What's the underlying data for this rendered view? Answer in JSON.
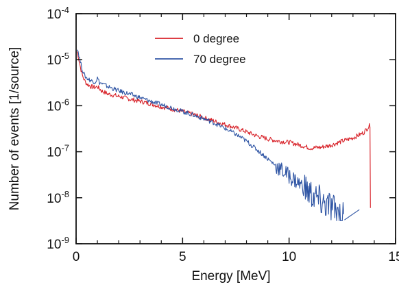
{
  "colors": {
    "series_0": "#d8232a",
    "series_70": "#2f55a4",
    "axis": "#111111",
    "background": "#ffffff"
  },
  "chart_data": {
    "type": "line",
    "title": "",
    "xlabel": "Energy [MeV]",
    "ylabel": "Number of events [1/source]",
    "xlim": [
      0,
      15
    ],
    "ylim": [
      1e-09,
      0.0001
    ],
    "yscale": "log",
    "grid": false,
    "legend_position": "top-center",
    "xticks": [
      0,
      5,
      10,
      15
    ],
    "xtick_labels": [
      "0",
      "5",
      "10",
      "15"
    ],
    "yticks": [
      1e-09,
      1e-08,
      1e-07,
      1e-06,
      1e-05,
      0.0001
    ],
    "ytick_labels": [
      {
        "base": "10",
        "exp": "-9"
      },
      {
        "base": "10",
        "exp": "-8"
      },
      {
        "base": "10",
        "exp": "-7"
      },
      {
        "base": "10",
        "exp": "-6"
      },
      {
        "base": "10",
        "exp": "-5"
      },
      {
        "base": "10",
        "exp": "-4"
      }
    ],
    "series": [
      {
        "name": "0 degree",
        "color": "#d8232a",
        "points": [
          [
            0.05,
            1.5e-05
          ],
          [
            0.1,
            1.2e-05
          ],
          [
            0.2,
            7e-06
          ],
          [
            0.3,
            4.5e-06
          ],
          [
            0.4,
            3.5e-06
          ],
          [
            0.5,
            3e-06
          ],
          [
            0.7,
            2.6e-06
          ],
          [
            0.9,
            2.5e-06
          ],
          [
            1.0,
            2.6e-06
          ],
          [
            1.2,
            2.1e-06
          ],
          [
            1.5,
            1.8e-06
          ],
          [
            2.0,
            1.6e-06
          ],
          [
            2.5,
            1.4e-06
          ],
          [
            3.0,
            1.25e-06
          ],
          [
            3.5,
            1.1e-06
          ],
          [
            4.0,
            9.5e-07
          ],
          [
            4.5,
            8.5e-07
          ],
          [
            5.0,
            7.5e-07
          ],
          [
            5.5,
            6.5e-07
          ],
          [
            6.0,
            5.5e-07
          ],
          [
            6.5,
            4.6e-07
          ],
          [
            7.0,
            3.9e-07
          ],
          [
            7.5,
            3.3e-07
          ],
          [
            8.0,
            2.7e-07
          ],
          [
            8.5,
            2.2e-07
          ],
          [
            9.0,
            1.9e-07
          ],
          [
            9.5,
            1.7e-07
          ],
          [
            10.0,
            1.6e-07
          ],
          [
            10.5,
            1.4e-07
          ],
          [
            11.0,
            1.2e-07
          ],
          [
            11.5,
            1.25e-07
          ],
          [
            12.0,
            1.4e-07
          ],
          [
            12.5,
            1.7e-07
          ],
          [
            13.0,
            2e-07
          ],
          [
            13.5,
            2.6e-07
          ],
          [
            13.8,
            3.8e-07
          ],
          [
            13.82,
            6e-09
          ]
        ]
      },
      {
        "name": "70 degree",
        "color": "#2f55a4",
        "points": [
          [
            0.05,
            1.8e-05
          ],
          [
            0.1,
            1.5e-05
          ],
          [
            0.2,
            9e-06
          ],
          [
            0.3,
            6e-06
          ],
          [
            0.4,
            4.5e-06
          ],
          [
            0.5,
            4e-06
          ],
          [
            0.7,
            3.5e-06
          ],
          [
            0.9,
            3.3e-06
          ],
          [
            1.0,
            4e-06
          ],
          [
            1.1,
            3.2e-06
          ],
          [
            1.5,
            2.6e-06
          ],
          [
            2.0,
            2.1e-06
          ],
          [
            2.5,
            1.8e-06
          ],
          [
            3.0,
            1.5e-06
          ],
          [
            3.5,
            1.25e-06
          ],
          [
            4.0,
            1.05e-06
          ],
          [
            4.5,
            9e-07
          ],
          [
            5.0,
            7.5e-07
          ],
          [
            5.5,
            6.3e-07
          ],
          [
            6.0,
            5.2e-07
          ],
          [
            6.5,
            4.2e-07
          ],
          [
            7.0,
            3.2e-07
          ],
          [
            7.5,
            2.4e-07
          ],
          [
            8.0,
            1.7e-07
          ],
          [
            8.5,
            1.1e-07
          ],
          [
            9.0,
            7e-08
          ],
          [
            9.5,
            4.5e-08
          ],
          [
            10.0,
            3e-08
          ],
          [
            10.5,
            2e-08
          ],
          [
            11.0,
            1.2e-08
          ],
          [
            11.5,
            8e-09
          ],
          [
            12.0,
            6e-09
          ],
          [
            12.5,
            4e-09
          ],
          [
            12.6,
            3.3e-09
          ],
          [
            13.3,
            5.5e-09
          ]
        ]
      }
    ]
  }
}
